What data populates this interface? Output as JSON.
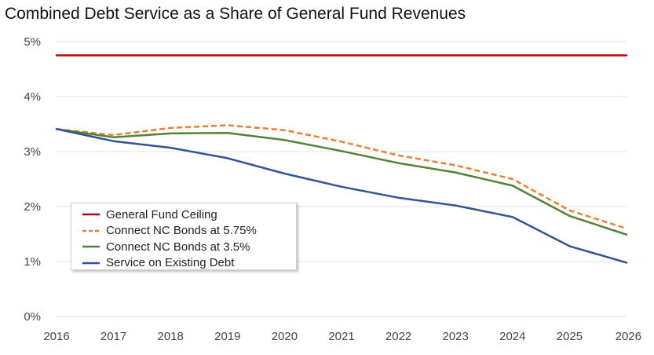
{
  "chart_data": {
    "type": "line",
    "title": "Combined Debt Service as a Share of General Fund Revenues",
    "xlabel": "",
    "ylabel": "",
    "x": [
      "2016",
      "2017",
      "2018",
      "2019",
      "2020",
      "2021",
      "2022",
      "2023",
      "2024",
      "2025",
      "2026"
    ],
    "ylim": [
      0,
      5
    ],
    "yticks": [
      "0%",
      "1%",
      "2%",
      "3%",
      "4%",
      "5%"
    ],
    "grid": true,
    "legend_position": "lower-left",
    "series": [
      {
        "name": "General Fund Ceiling",
        "color": "#c00000",
        "style": "solid",
        "values": [
          4.75,
          4.75,
          4.75,
          4.75,
          4.75,
          4.75,
          4.75,
          4.75,
          4.75,
          4.75,
          4.75
        ]
      },
      {
        "name": "Connect NC Bonds at 5.75%",
        "color": "#ed7d31",
        "style": "dashed",
        "values": [
          3.41,
          3.3,
          3.43,
          3.48,
          3.39,
          3.18,
          2.93,
          2.75,
          2.5,
          1.93,
          1.6
        ]
      },
      {
        "name": "Connect NC Bonds at 3.5%",
        "color": "#548235",
        "style": "solid",
        "values": [
          3.41,
          3.26,
          3.33,
          3.34,
          3.21,
          3.01,
          2.79,
          2.62,
          2.38,
          1.83,
          1.49
        ]
      },
      {
        "name": "Service on Existing Debt",
        "color": "#2f5597",
        "style": "solid",
        "values": [
          3.41,
          3.19,
          3.07,
          2.88,
          2.6,
          2.36,
          2.16,
          2.02,
          1.81,
          1.28,
          0.98
        ]
      }
    ]
  }
}
